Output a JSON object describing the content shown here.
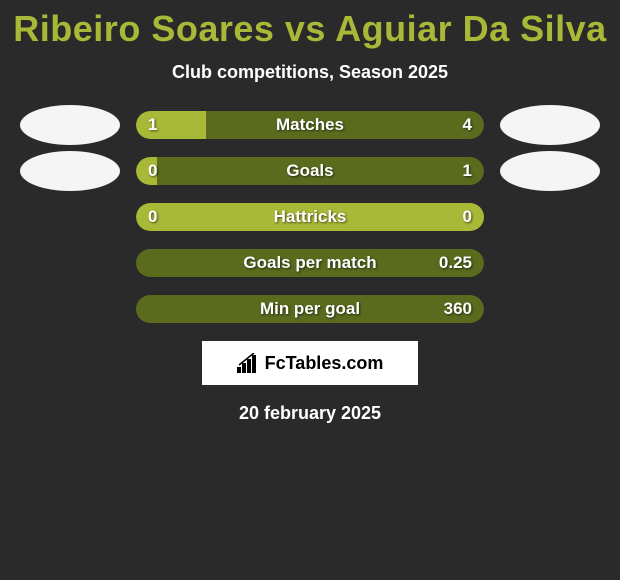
{
  "title": "Ribeiro Soares vs Aguiar Da Silva",
  "subtitle": "Club competitions, Season 2025",
  "date": "20 february 2025",
  "brand": "FcTables.com",
  "colors": {
    "background": "#2a2a2a",
    "accent": "#a8b837",
    "left_fill": "#a8b837",
    "right_fill": "#5a6b1e",
    "text": "#ffffff",
    "avatar_bg": "#f5f5f5"
  },
  "rows": [
    {
      "label": "Matches",
      "left_val": "1",
      "right_val": "4",
      "left_pct": 20,
      "right_pct": 80,
      "show_avatars": true
    },
    {
      "label": "Goals",
      "left_val": "0",
      "right_val": "1",
      "left_pct": 6,
      "right_pct": 94,
      "show_avatars": true
    },
    {
      "label": "Hattricks",
      "left_val": "0",
      "right_val": "0",
      "left_pct": 100,
      "right_pct": 0,
      "show_avatars": false
    },
    {
      "label": "Goals per match",
      "left_val": "",
      "right_val": "0.25",
      "left_pct": 0,
      "right_pct": 100,
      "show_avatars": false
    },
    {
      "label": "Min per goal",
      "left_val": "",
      "right_val": "360",
      "left_pct": 0,
      "right_pct": 100,
      "show_avatars": false
    }
  ]
}
